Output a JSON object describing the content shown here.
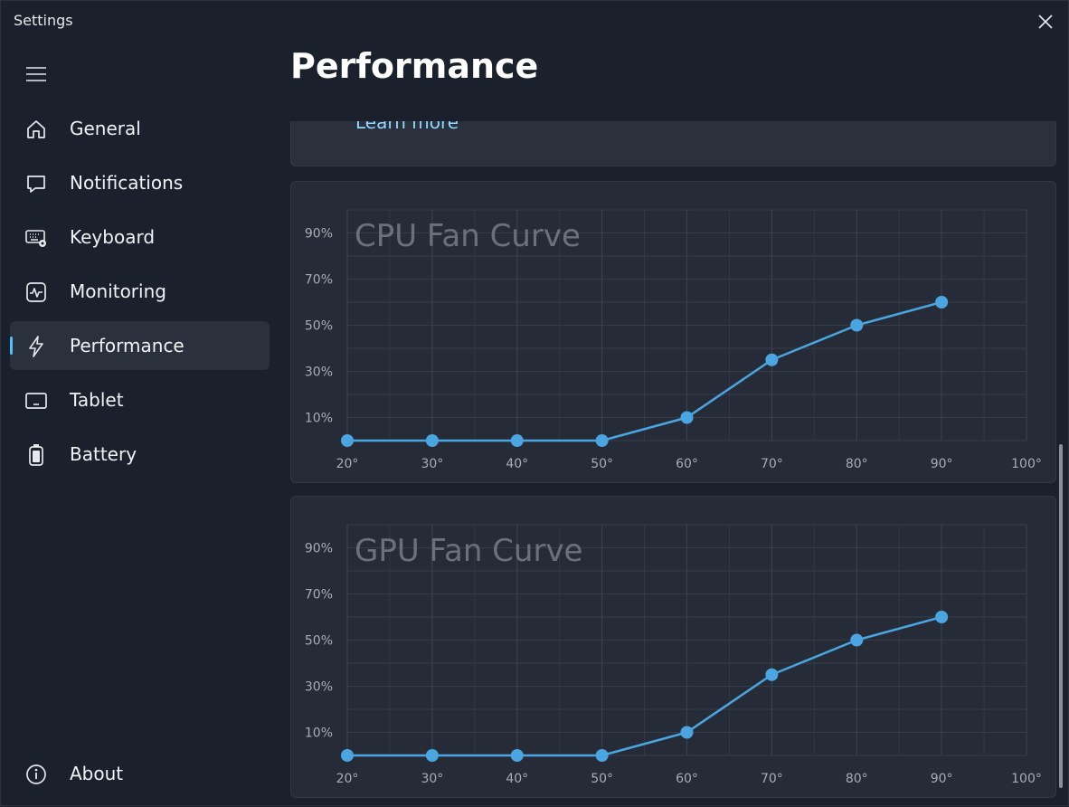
{
  "window": {
    "title": "Settings"
  },
  "header": {
    "page_title": "Performance"
  },
  "sidebar": {
    "items": [
      {
        "label": "General",
        "icon": "home-icon"
      },
      {
        "label": "Notifications",
        "icon": "chat-bubble-icon"
      },
      {
        "label": "Keyboard",
        "icon": "keyboard-settings-icon"
      },
      {
        "label": "Monitoring",
        "icon": "pulse-icon"
      },
      {
        "label": "Performance",
        "icon": "lightning-icon",
        "active": true
      },
      {
        "label": "Tablet",
        "icon": "tablet-icon"
      },
      {
        "label": "Battery",
        "icon": "battery-icon"
      }
    ],
    "about": {
      "label": "About",
      "icon": "info-icon"
    }
  },
  "partial_card": {
    "link": "Learn more"
  },
  "colors": {
    "accent": "#4cc2ff",
    "line": "#4aa5e0",
    "grid": "#3b4350"
  },
  "chart_data": [
    {
      "type": "line",
      "title": "CPU Fan Curve",
      "x": [
        20,
        30,
        40,
        50,
        60,
        70,
        80,
        90
      ],
      "values": [
        0,
        0,
        0,
        0,
        10,
        35,
        50,
        60
      ],
      "x_ticks": [
        "20°",
        "30°",
        "40°",
        "50°",
        "60°",
        "70°",
        "80°",
        "90°",
        "100°"
      ],
      "y_ticks": [
        "10%",
        "30%",
        "50%",
        "70%",
        "90%"
      ],
      "xlim": [
        20,
        100
      ],
      "ylim": [
        0,
        100
      ],
      "grid": true
    },
    {
      "type": "line",
      "title": "GPU Fan Curve",
      "x": [
        20,
        30,
        40,
        50,
        60,
        70,
        80,
        90
      ],
      "values": [
        0,
        0,
        0,
        0,
        10,
        35,
        50,
        60
      ],
      "x_ticks": [
        "20°",
        "30°",
        "40°",
        "50°",
        "60°",
        "70°",
        "80°",
        "90°",
        "100°"
      ],
      "y_ticks": [
        "10%",
        "30%",
        "50%",
        "70%",
        "90%"
      ],
      "xlim": [
        20,
        100
      ],
      "ylim": [
        0,
        100
      ],
      "grid": true
    }
  ]
}
